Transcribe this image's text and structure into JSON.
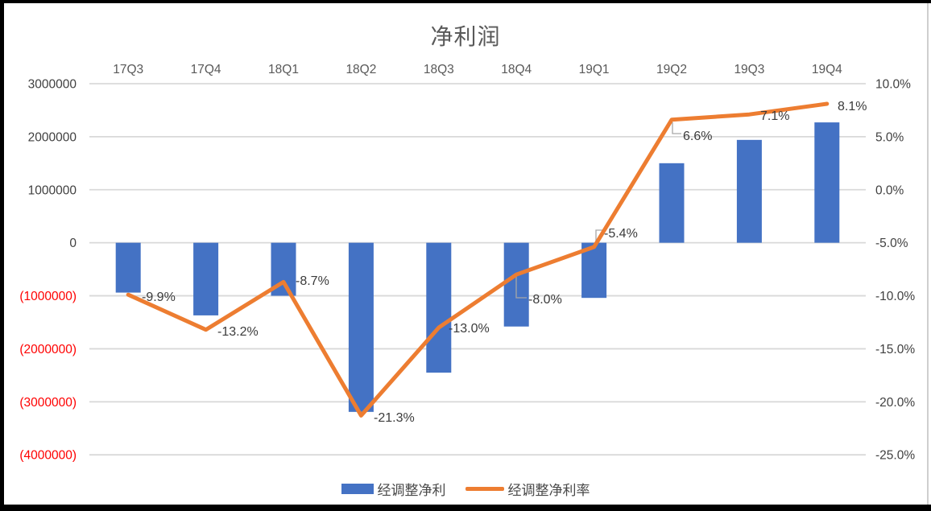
{
  "chart": {
    "title": "净利润",
    "colors": {
      "bar": "#4472C4",
      "line": "#ED7D31",
      "gridline": "#D9D9D9",
      "axis_text": "#595959",
      "negative_tick_text": "#FF0000",
      "data_label_text": "#3b3b3b",
      "leader_line": "#A6A6A6",
      "title_text": "#595959"
    }
  },
  "chart_data": {
    "type": "bar+line combo",
    "title": "净利润",
    "categories": [
      "17Q3",
      "17Q4",
      "18Q1",
      "18Q2",
      "18Q3",
      "18Q4",
      "19Q1",
      "19Q2",
      "19Q3",
      "19Q4"
    ],
    "series": [
      {
        "name": "经调整净利",
        "type": "bar",
        "axis": "left",
        "color": "#4472C4",
        "values": [
          -940000,
          -1370000,
          -1000000,
          -3190000,
          -2450000,
          -1580000,
          -1040000,
          1500000,
          1940000,
          2270000
        ]
      },
      {
        "name": "经调整净利率",
        "type": "line",
        "axis": "right",
        "color": "#ED7D31",
        "values": [
          -9.9,
          -13.2,
          -8.7,
          -21.3,
          -13.0,
          -8.0,
          -5.4,
          6.6,
          7.1,
          8.1
        ],
        "labels": [
          "-9.9%",
          "-13.2%",
          "-8.7%",
          "-21.3%",
          "-13.0%",
          "-8.0%",
          "-5.4%",
          "6.6%",
          "7.1%",
          "8.1%"
        ]
      }
    ],
    "left_axis": {
      "ticks": [
        "3000000",
        "2000000",
        "1000000",
        "0",
        "(1000000)",
        "(2000000)",
        "(3000000)",
        "(4000000)"
      ],
      "tick_values": [
        3000000,
        2000000,
        1000000,
        0,
        -1000000,
        -2000000,
        -3000000,
        -4000000
      ],
      "range": [
        -4000000,
        3000000
      ]
    },
    "right_axis": {
      "ticks": [
        "10.0%",
        "5.0%",
        "0.0%",
        "-5.0%",
        "-10.0%",
        "-15.0%",
        "-20.0%",
        "-25.0%"
      ],
      "tick_values": [
        10,
        5,
        0,
        -5,
        -10,
        -15,
        -20,
        -25
      ],
      "range": [
        -25,
        10
      ]
    },
    "grid": "horizontal",
    "category_axis_position": "top",
    "legend_position": "bottom"
  }
}
